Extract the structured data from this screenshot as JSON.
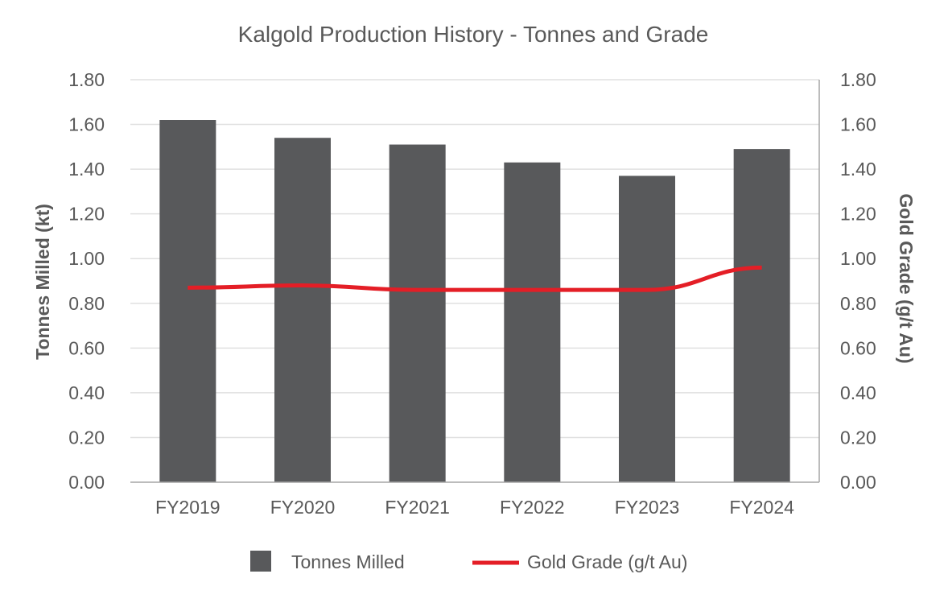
{
  "chart_data": {
    "type": "bar",
    "title": "Kalgold Production History - Tonnes and Grade",
    "categories": [
      "FY2019",
      "FY2020",
      "FY2021",
      "FY2022",
      "FY2023",
      "FY2024"
    ],
    "series": [
      {
        "name": "Tonnes Milled",
        "type": "bar",
        "axis": "left",
        "color": "#58595b",
        "values": [
          1.62,
          1.54,
          1.51,
          1.43,
          1.37,
          1.49
        ]
      },
      {
        "name": "Gold Grade (g/t Au)",
        "type": "line",
        "axis": "right",
        "color": "#e41e26",
        "values": [
          0.87,
          0.88,
          0.86,
          0.86,
          0.86,
          0.96
        ]
      }
    ],
    "ylabel": "Tonnes Milled (kt)",
    "y2label": "Gold Grade (g/t Au)",
    "ylim": [
      0,
      1.8
    ],
    "y2lim": [
      0,
      1.8
    ],
    "yticks": [
      "0.00",
      "0.20",
      "0.40",
      "0.60",
      "0.80",
      "1.00",
      "1.20",
      "1.40",
      "1.60",
      "1.80"
    ],
    "y2ticks": [
      "0.00",
      "0.20",
      "0.40",
      "0.60",
      "0.80",
      "1.00",
      "1.20",
      "1.40",
      "1.60",
      "1.80"
    ],
    "grid": true,
    "legend_position": "bottom",
    "gridline_color": "#e0e0e0",
    "axis_color": "#a6a6a6"
  }
}
